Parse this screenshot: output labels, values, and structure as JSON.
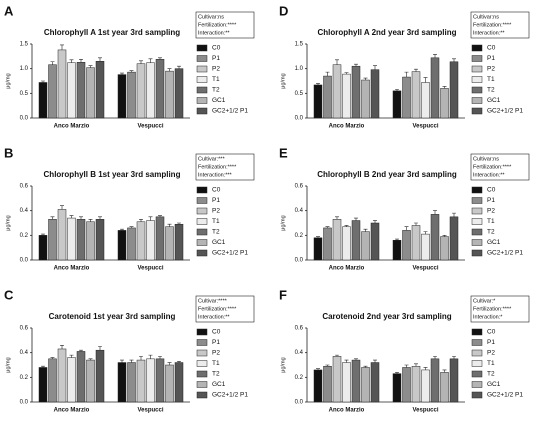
{
  "chart_data": [
    {
      "type": "bar",
      "panel": "A",
      "title": "Chlorophyll A 1st year 3rd sampling",
      "ylabel": "μg/mg",
      "stats": [
        "Cultivar:ns",
        "Fertilization:****",
        "Interaction:**"
      ],
      "categories": [
        "Anco Marzio",
        "Vespucci"
      ],
      "ylim": [
        0,
        1.5
      ],
      "yticks": [
        {
          "value": 0,
          "label": "0.0"
        },
        {
          "value": 0.5,
          "label": "0.5"
        },
        {
          "value": 1,
          "label": "1.0"
        },
        {
          "value": 1.5,
          "label": "1.5"
        }
      ],
      "series": [
        {
          "name": "C0",
          "color": "#111111",
          "values": [
            0.72,
            0.88
          ],
          "errors": [
            0.03,
            0.03
          ]
        },
        {
          "name": "P1",
          "color": "#8c8c8c",
          "values": [
            1.08,
            0.93
          ],
          "errors": [
            0.06,
            0.03
          ]
        },
        {
          "name": "P2",
          "color": "#c8c8c8",
          "values": [
            1.38,
            1.1
          ],
          "errors": [
            0.1,
            0.06
          ]
        },
        {
          "name": "T1",
          "color": "#ececec",
          "values": [
            1.12,
            1.12
          ],
          "errors": [
            0.06,
            0.08
          ]
        },
        {
          "name": "T2",
          "color": "#6e6e6e",
          "values": [
            1.13,
            1.19
          ],
          "errors": [
            0.06,
            0.03
          ]
        },
        {
          "name": "GC1",
          "color": "#b4b4b4",
          "values": [
            1.02,
            0.95
          ],
          "errors": [
            0.04,
            0.05
          ]
        },
        {
          "name": "GC2+1/2 P1",
          "color": "#555555",
          "values": [
            1.15,
            1.0
          ],
          "errors": [
            0.07,
            0.05
          ]
        }
      ]
    },
    {
      "type": "bar",
      "panel": "B",
      "title": "Chlorophyll B 1st year 3rd sampling",
      "ylabel": "μg/mg",
      "stats": [
        "Cultivar:***",
        "Fertilization:****",
        "Interaction:***"
      ],
      "categories": [
        "Anco Marzio",
        "Vespucci"
      ],
      "ylim": [
        0,
        0.6
      ],
      "yticks": [
        {
          "value": 0,
          "label": "0.0"
        },
        {
          "value": 0.2,
          "label": "0.2"
        },
        {
          "value": 0.4,
          "label": "0.4"
        },
        {
          "value": 0.6,
          "label": "0.6"
        }
      ],
      "series": [
        {
          "name": "C0",
          "color": "#111111",
          "values": [
            0.2,
            0.24
          ],
          "errors": [
            0.01,
            0.01
          ]
        },
        {
          "name": "P1",
          "color": "#8c8c8c",
          "values": [
            0.33,
            0.26
          ],
          "errors": [
            0.02,
            0.01
          ]
        },
        {
          "name": "P2",
          "color": "#c8c8c8",
          "values": [
            0.41,
            0.31
          ],
          "errors": [
            0.03,
            0.02
          ]
        },
        {
          "name": "T1",
          "color": "#ececec",
          "values": [
            0.34,
            0.32
          ],
          "errors": [
            0.02,
            0.03
          ]
        },
        {
          "name": "T2",
          "color": "#6e6e6e",
          "values": [
            0.33,
            0.35
          ],
          "errors": [
            0.02,
            0.01
          ]
        },
        {
          "name": "GC1",
          "color": "#b4b4b4",
          "values": [
            0.31,
            0.27
          ],
          "errors": [
            0.02,
            0.02
          ]
        },
        {
          "name": "GC2+1/2 P1",
          "color": "#555555",
          "values": [
            0.33,
            0.29
          ],
          "errors": [
            0.02,
            0.01
          ]
        }
      ]
    },
    {
      "type": "bar",
      "panel": "C",
      "title": "Carotenoid 1st year 3rd sampling",
      "ylabel": "μg/mg",
      "stats": [
        "Cultivar:****",
        "Fertilization:****",
        "Interaction:**"
      ],
      "categories": [
        "Anco Marzio",
        "Vespucci"
      ],
      "ylim": [
        0,
        0.6
      ],
      "yticks": [
        {
          "value": 0,
          "label": "0.0"
        },
        {
          "value": 0.2,
          "label": "0.2"
        },
        {
          "value": 0.4,
          "label": "0.4"
        },
        {
          "value": 0.6,
          "label": "0.6"
        }
      ],
      "series": [
        {
          "name": "C0",
          "color": "#111111",
          "values": [
            0.28,
            0.32
          ],
          "errors": [
            0.01,
            0.02
          ]
        },
        {
          "name": "P1",
          "color": "#8c8c8c",
          "values": [
            0.35,
            0.32
          ],
          "errors": [
            0.01,
            0.02
          ]
        },
        {
          "name": "P2",
          "color": "#c8c8c8",
          "values": [
            0.43,
            0.34
          ],
          "errors": [
            0.03,
            0.03
          ]
        },
        {
          "name": "T1",
          "color": "#ececec",
          "values": [
            0.36,
            0.35
          ],
          "errors": [
            0.02,
            0.03
          ]
        },
        {
          "name": "T2",
          "color": "#6e6e6e",
          "values": [
            0.41,
            0.35
          ],
          "errors": [
            0.01,
            0.02
          ]
        },
        {
          "name": "GC1",
          "color": "#b4b4b4",
          "values": [
            0.34,
            0.3
          ],
          "errors": [
            0.01,
            0.02
          ]
        },
        {
          "name": "GC2+1/2 P1",
          "color": "#555555",
          "values": [
            0.42,
            0.32
          ],
          "errors": [
            0.03,
            0.01
          ]
        }
      ]
    },
    {
      "type": "bar",
      "panel": "D",
      "title": "Chlorophyll A 2nd year 3rd sampling",
      "ylabel": "μg/mg",
      "stats": [
        "Cultivar:ns",
        "Fertilization:****",
        "Interaction:**"
      ],
      "categories": [
        "Anco Marzio",
        "Vespucci"
      ],
      "ylim": [
        0,
        1.5
      ],
      "yticks": [
        {
          "value": 0,
          "label": "0.0"
        },
        {
          "value": 0.5,
          "label": "0.5"
        },
        {
          "value": 1,
          "label": "1.0"
        },
        {
          "value": 1.5,
          "label": "1.5"
        }
      ],
      "series": [
        {
          "name": "C0",
          "color": "#111111",
          "values": [
            0.67,
            0.55
          ],
          "errors": [
            0.03,
            0.03
          ]
        },
        {
          "name": "P1",
          "color": "#8c8c8c",
          "values": [
            0.85,
            0.83
          ],
          "errors": [
            0.08,
            0.1
          ]
        },
        {
          "name": "P2",
          "color": "#c8c8c8",
          "values": [
            1.08,
            0.94
          ],
          "errors": [
            0.1,
            0.05
          ]
        },
        {
          "name": "T1",
          "color": "#ececec",
          "values": [
            0.89,
            0.72
          ],
          "errors": [
            0.03,
            0.1
          ]
        },
        {
          "name": "T2",
          "color": "#6e6e6e",
          "values": [
            1.05,
            1.22
          ],
          "errors": [
            0.04,
            0.07
          ]
        },
        {
          "name": "GC1",
          "color": "#b4b4b4",
          "values": [
            0.77,
            0.6
          ],
          "errors": [
            0.04,
            0.04
          ]
        },
        {
          "name": "GC2+1/2 P1",
          "color": "#555555",
          "values": [
            0.98,
            1.14
          ],
          "errors": [
            0.08,
            0.06
          ]
        }
      ]
    },
    {
      "type": "bar",
      "panel": "E",
      "title": "Chlorophyll B 2nd year 3rd sampling",
      "ylabel": "μg/mg",
      "stats": [
        "Cultivar:ns",
        "Fertilization:****",
        "Interaction:**"
      ],
      "categories": [
        "Anco Marzio",
        "Vespucci"
      ],
      "ylim": [
        0,
        0.6
      ],
      "yticks": [
        {
          "value": 0,
          "label": "0.0"
        },
        {
          "value": 0.2,
          "label": "0.2"
        },
        {
          "value": 0.4,
          "label": "0.4"
        },
        {
          "value": 0.6,
          "label": "0.6"
        }
      ],
      "series": [
        {
          "name": "C0",
          "color": "#111111",
          "values": [
            0.18,
            0.16
          ],
          "errors": [
            0.01,
            0.01
          ]
        },
        {
          "name": "P1",
          "color": "#8c8c8c",
          "values": [
            0.26,
            0.24
          ],
          "errors": [
            0.01,
            0.03
          ]
        },
        {
          "name": "P2",
          "color": "#c8c8c8",
          "values": [
            0.33,
            0.28
          ],
          "errors": [
            0.02,
            0.02
          ]
        },
        {
          "name": "T1",
          "color": "#ececec",
          "values": [
            0.27,
            0.21
          ],
          "errors": [
            0.01,
            0.02
          ]
        },
        {
          "name": "T2",
          "color": "#6e6e6e",
          "values": [
            0.32,
            0.37
          ],
          "errors": [
            0.02,
            0.03
          ]
        },
        {
          "name": "GC1",
          "color": "#b4b4b4",
          "values": [
            0.23,
            0.19
          ],
          "errors": [
            0.02,
            0.01
          ]
        },
        {
          "name": "GC2+1/2 P1",
          "color": "#555555",
          "values": [
            0.3,
            0.35
          ],
          "errors": [
            0.02,
            0.03
          ]
        }
      ]
    },
    {
      "type": "bar",
      "panel": "F",
      "title": "Carotenoid 2nd year 3rd sampling",
      "ylabel": "μg/mg",
      "stats": [
        "Cultivar:*",
        "Fertilization:****",
        "Interaction:*"
      ],
      "categories": [
        "Anco Marzio",
        "Vespucci"
      ],
      "ylim": [
        0,
        0.6
      ],
      "yticks": [
        {
          "value": 0,
          "label": "0.0"
        },
        {
          "value": 0.2,
          "label": "0.2"
        },
        {
          "value": 0.4,
          "label": "0.4"
        },
        {
          "value": 0.6,
          "label": "0.6"
        }
      ],
      "series": [
        {
          "name": "C0",
          "color": "#111111",
          "values": [
            0.26,
            0.23
          ],
          "errors": [
            0.01,
            0.01
          ]
        },
        {
          "name": "P1",
          "color": "#8c8c8c",
          "values": [
            0.29,
            0.28
          ],
          "errors": [
            0.01,
            0.02
          ]
        },
        {
          "name": "P2",
          "color": "#c8c8c8",
          "values": [
            0.37,
            0.29
          ],
          "errors": [
            0.01,
            0.02
          ]
        },
        {
          "name": "T1",
          "color": "#ececec",
          "values": [
            0.32,
            0.26
          ],
          "errors": [
            0.02,
            0.02
          ]
        },
        {
          "name": "T2",
          "color": "#6e6e6e",
          "values": [
            0.34,
            0.35
          ],
          "errors": [
            0.01,
            0.02
          ]
        },
        {
          "name": "GC1",
          "color": "#b4b4b4",
          "values": [
            0.28,
            0.24
          ],
          "errors": [
            0.01,
            0.02
          ]
        },
        {
          "name": "GC2+1/2 P1",
          "color": "#555555",
          "values": [
            0.32,
            0.35
          ],
          "errors": [
            0.02,
            0.02
          ]
        }
      ]
    }
  ]
}
